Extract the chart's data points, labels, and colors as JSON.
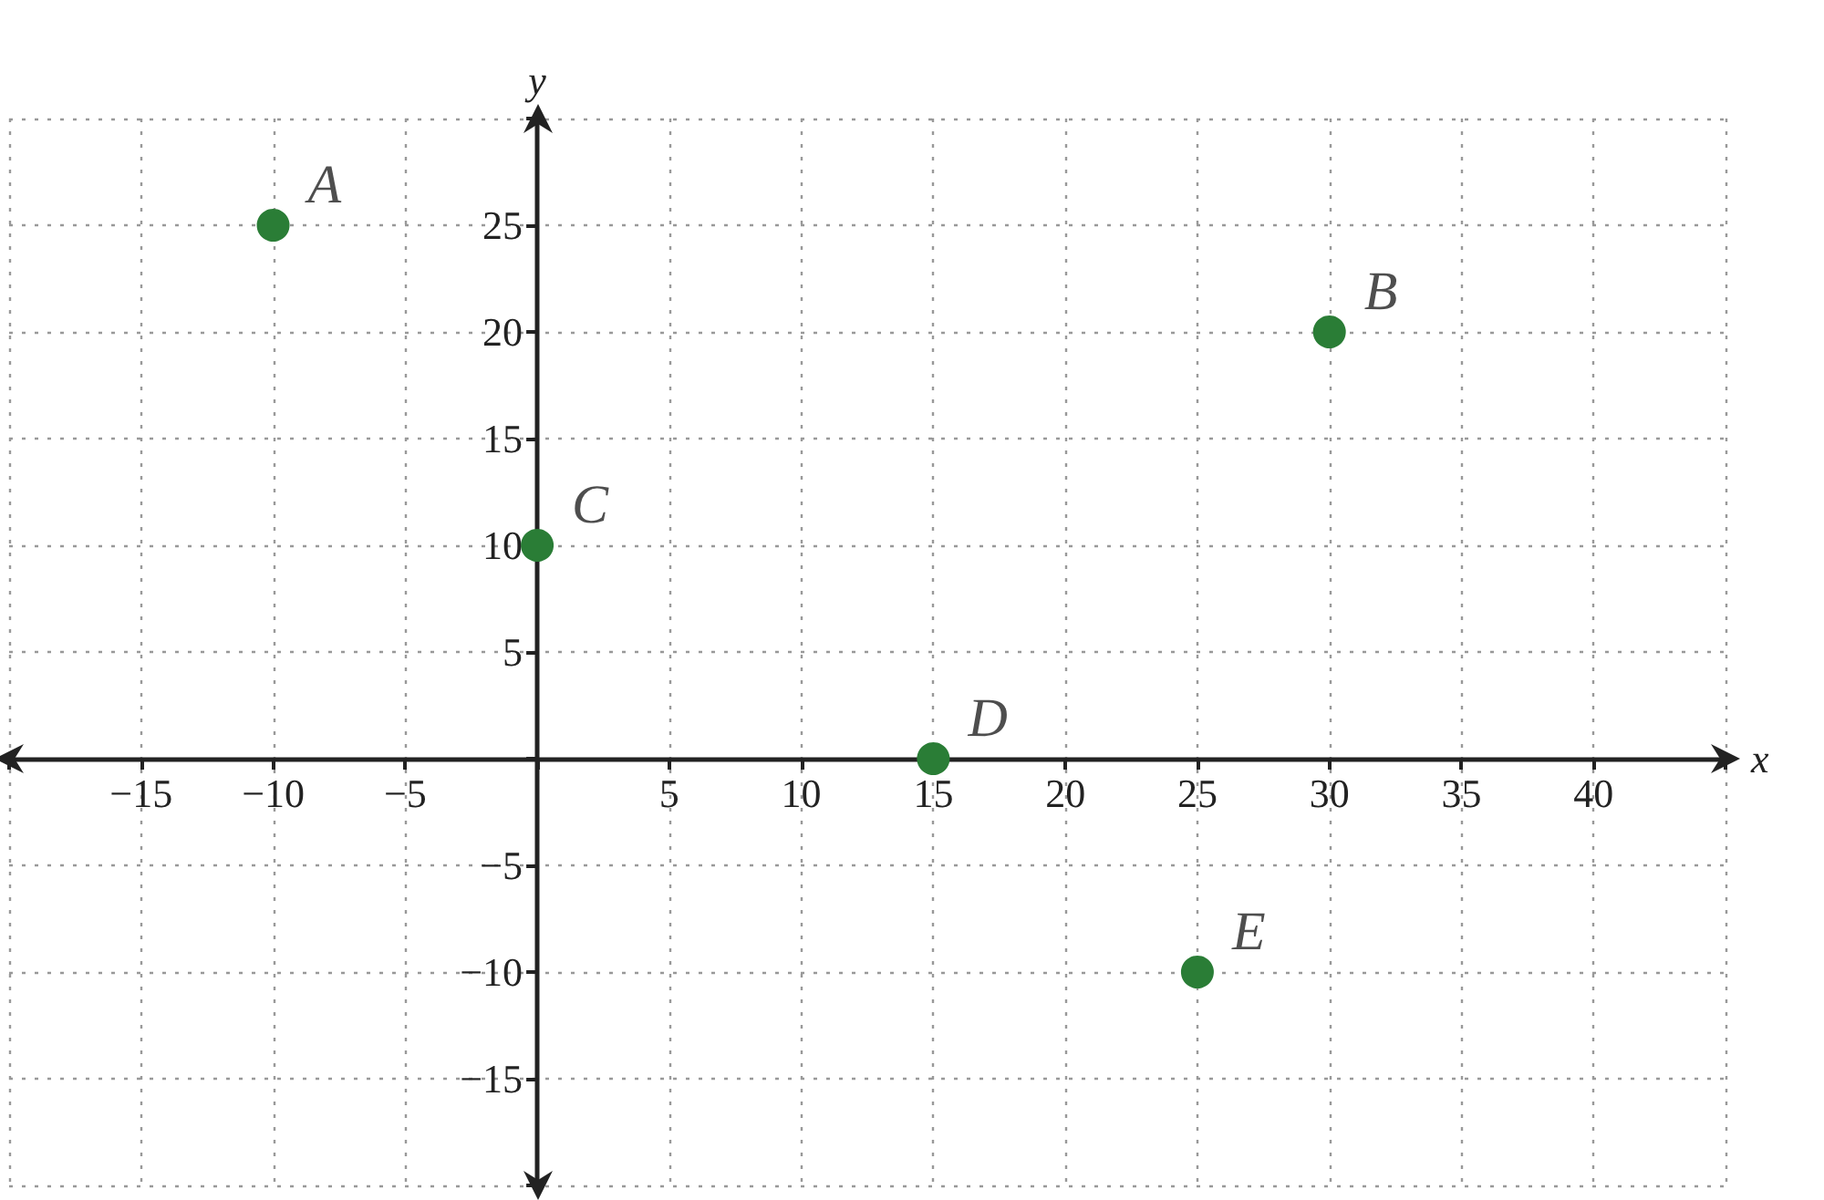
{
  "chart_data": {
    "type": "scatter",
    "xlabel": "x",
    "ylabel": "y",
    "x": [
      -10,
      30,
      0,
      15,
      25
    ],
    "series": [
      {
        "color": "#2a7d36",
        "values": [
          25,
          20,
          10,
          0,
          -10
        ]
      }
    ],
    "marker": "circle",
    "grid": true,
    "xlim": [
      -20,
      45
    ],
    "ylim": [
      -20,
      30
    ],
    "xticks": [
      {
        "value": -20,
        "label": null
      },
      {
        "value": -15,
        "label": "−15"
      },
      {
        "value": -10,
        "label": "−10"
      },
      {
        "value": -5,
        "label": "−5"
      },
      {
        "value": 0,
        "label": null
      },
      5,
      10,
      15,
      20,
      25,
      30,
      35,
      40,
      {
        "value": 45,
        "label": null
      }
    ],
    "yticks": [
      {
        "value": -20,
        "label": null
      },
      {
        "value": -15,
        "label": "−15"
      },
      {
        "value": -10,
        "label": "−10"
      },
      {
        "value": -5,
        "label": "−5"
      },
      {
        "value": 0,
        "label": null
      },
      5,
      10,
      15,
      20,
      25,
      {
        "value": 30,
        "label": null
      }
    ],
    "annotations": [
      {
        "text": "A",
        "x": -10,
        "y": 25
      },
      {
        "text": "B",
        "x": 30,
        "y": 20
      },
      {
        "text": "C",
        "x": 0,
        "y": 10
      },
      {
        "text": "D",
        "x": 15,
        "y": 0
      },
      {
        "text": "E",
        "x": 25,
        "y": -10
      }
    ]
  }
}
